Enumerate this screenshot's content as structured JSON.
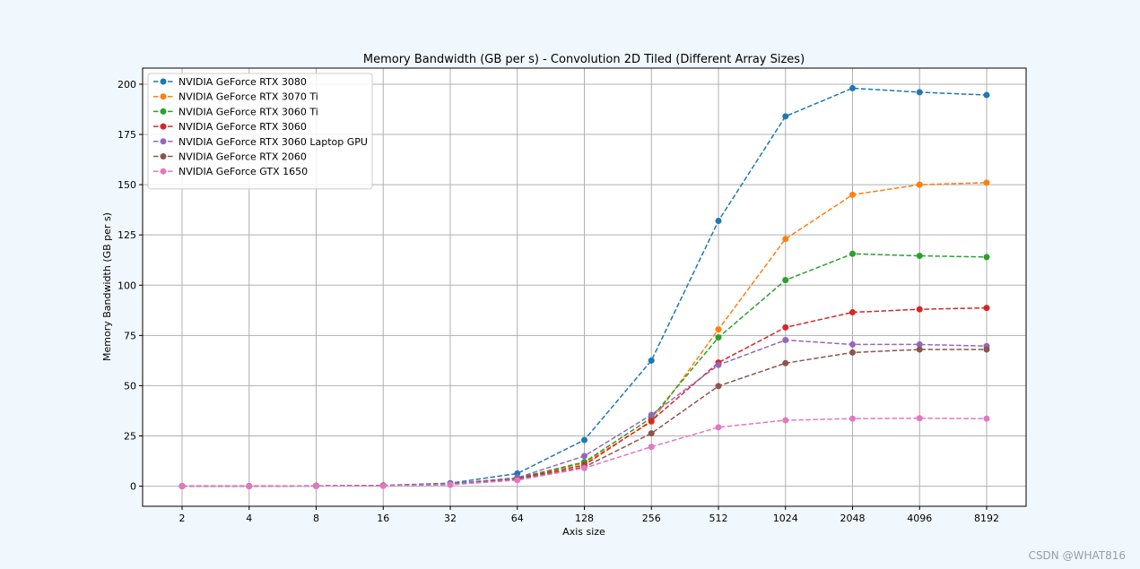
{
  "watermark": "CSDN @WHAT816",
  "chart_data": {
    "type": "line",
    "title": "Memory Bandwidth (GB per s) - Convolution 2D Tiled (Different Array Sizes)",
    "xlabel": "Axis size",
    "ylabel": "Memory Bandwidth (GB per s)",
    "x_scale": "log2",
    "categories": [
      "2",
      "4",
      "8",
      "16",
      "32",
      "64",
      "128",
      "256",
      "512",
      "1024",
      "2048",
      "4096",
      "8192"
    ],
    "ylim": [
      -10,
      208
    ],
    "yticks": [
      0,
      25,
      50,
      75,
      100,
      125,
      150,
      175,
      200
    ],
    "grid": true,
    "legend_position": "top-left",
    "line_style": "dashed",
    "marker": "circle",
    "series": [
      {
        "name": "NVIDIA GeForce RTX 3080",
        "color": "#1f77b4",
        "values": [
          0.01,
          0.05,
          0.2,
          0.4,
          1.5,
          6.3,
          23.0,
          62.5,
          132.0,
          184.0,
          198.0,
          196.0,
          194.6
        ]
      },
      {
        "name": "NVIDIA GeForce RTX 3070 Ti",
        "color": "#ff7f0e",
        "values": [
          0.01,
          0.04,
          0.15,
          0.3,
          1.0,
          4.0,
          11.5,
          32.0,
          78.0,
          123.0,
          145.0,
          150.0,
          151.0
        ]
      },
      {
        "name": "NVIDIA GeForce RTX 3060 Ti",
        "color": "#2ca02c",
        "values": [
          0.01,
          0.04,
          0.15,
          0.3,
          1.0,
          4.0,
          12.0,
          34.0,
          74.0,
          102.5,
          115.6,
          114.6,
          114.0
        ]
      },
      {
        "name": "NVIDIA GeForce RTX 3060",
        "color": "#d62728",
        "values": [
          0.01,
          0.04,
          0.15,
          0.3,
          1.0,
          3.8,
          10.5,
          32.5,
          61.5,
          79.0,
          86.5,
          88.0,
          88.7
        ]
      },
      {
        "name": "NVIDIA GeForce RTX 3060 Laptop GPU",
        "color": "#9467bd",
        "values": [
          0.01,
          0.04,
          0.15,
          0.3,
          1.2,
          4.2,
          15.0,
          35.5,
          60.3,
          72.7,
          70.5,
          70.5,
          69.7
        ]
      },
      {
        "name": "NVIDIA GeForce RTX 2060",
        "color": "#8c564b",
        "values": [
          0.01,
          0.03,
          0.12,
          0.25,
          0.8,
          3.5,
          9.5,
          26.3,
          49.8,
          61.2,
          66.5,
          68.0,
          68.0
        ]
      },
      {
        "name": "NVIDIA GeForce GTX 1650",
        "color": "#e377c2",
        "values": [
          0.01,
          0.03,
          0.1,
          0.2,
          0.7,
          3.0,
          9.0,
          19.6,
          29.3,
          32.8,
          33.6,
          33.8,
          33.6
        ]
      }
    ]
  }
}
